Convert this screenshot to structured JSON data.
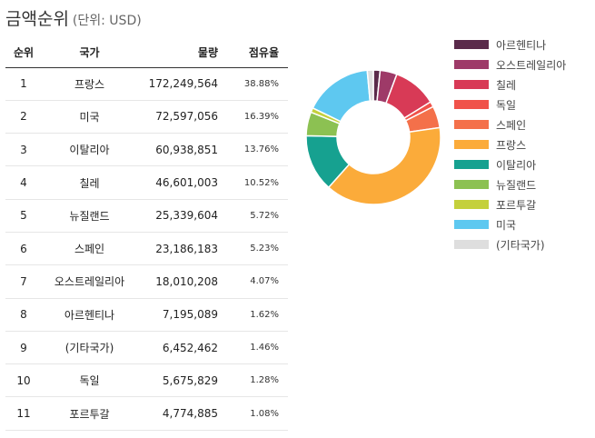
{
  "title": "금액순위",
  "subtitle": "(단위: USD)",
  "table": {
    "headers": [
      "순위",
      "국가",
      "물량",
      "점유율"
    ],
    "rows": [
      {
        "rank": "1",
        "country": "프랑스",
        "amount": "172,249,564",
        "share": "38.88%"
      },
      {
        "rank": "2",
        "country": "미국",
        "amount": "72,597,056",
        "share": "16.39%"
      },
      {
        "rank": "3",
        "country": "이탈리아",
        "amount": "60,938,851",
        "share": "13.76%"
      },
      {
        "rank": "4",
        "country": "칠레",
        "amount": "46,601,003",
        "share": "10.52%"
      },
      {
        "rank": "5",
        "country": "뉴질랜드",
        "amount": "25,339,604",
        "share": "5.72%"
      },
      {
        "rank": "6",
        "country": "스페인",
        "amount": "23,186,183",
        "share": "5.23%"
      },
      {
        "rank": "7",
        "country": "오스트레일리아",
        "amount": "18,010,208",
        "share": "4.07%"
      },
      {
        "rank": "8",
        "country": "아르헨티나",
        "amount": "7,195,089",
        "share": "1.62%"
      },
      {
        "rank": "9",
        "country": "(기타국가)",
        "amount": "6,452,462",
        "share": "1.46%"
      },
      {
        "rank": "10",
        "country": "독일",
        "amount": "5,675,829",
        "share": "1.28%"
      },
      {
        "rank": "11",
        "country": "포르투갈",
        "amount": "4,774,885",
        "share": "1.08%"
      }
    ]
  },
  "chart_data": {
    "type": "pie",
    "donut": true,
    "legend_position": "right",
    "slices": [
      {
        "label": "아르헨티나",
        "value": 1.62,
        "color": "#5a2a4a"
      },
      {
        "label": "오스트레일리아",
        "value": 4.07,
        "color": "#9e3a68"
      },
      {
        "label": "칠레",
        "value": 10.52,
        "color": "#d83a56"
      },
      {
        "label": "독일",
        "value": 1.28,
        "color": "#f0524a"
      },
      {
        "label": "스페인",
        "value": 5.23,
        "color": "#f4704a"
      },
      {
        "label": "프랑스",
        "value": 38.88,
        "color": "#fbab3a"
      },
      {
        "label": "이탈리아",
        "value": 13.76,
        "color": "#16a190"
      },
      {
        "label": "뉴질랜드",
        "value": 5.72,
        "color": "#8cc152"
      },
      {
        "label": "포르투갈",
        "value": 1.08,
        "color": "#c4d03c"
      },
      {
        "label": "미국",
        "value": 16.39,
        "color": "#5ec8f0"
      },
      {
        "label": "(기타국가)",
        "value": 1.46,
        "color": "#dedede"
      }
    ]
  }
}
